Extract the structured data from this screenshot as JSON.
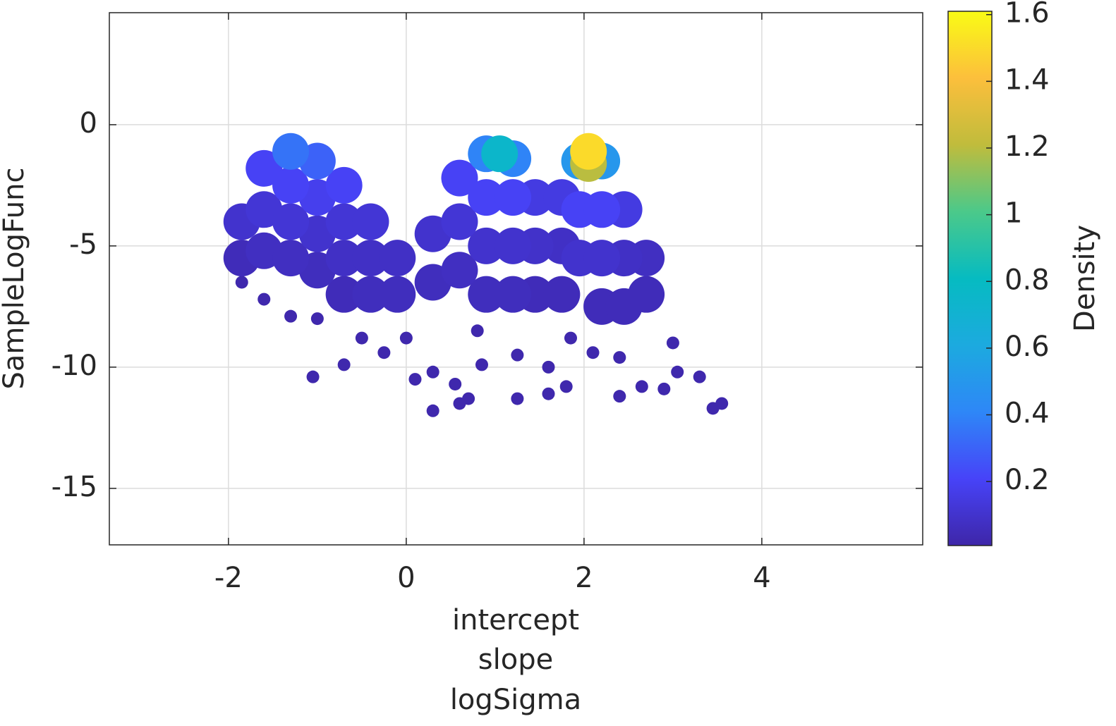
{
  "chart_data": {
    "type": "scatter",
    "ylabel": "SampleLogFunc",
    "xlabel": [
      "intercept",
      "slope",
      "logSigma"
    ],
    "colorbar_label": "Density",
    "x": [
      -1.85,
      -1.85,
      -1.6,
      -1.6,
      -1.6,
      -1.3,
      -1.3,
      -1.3,
      -1.3,
      -1,
      -1,
      -1,
      -1,
      -0.7,
      -0.7,
      -0.7,
      -0.7,
      -0.4,
      -0.4,
      -0.4,
      -0.1,
      -0.1,
      0.3,
      0.3,
      0.6,
      0.6,
      0.6,
      0.9,
      0.9,
      0.9,
      0.9,
      1.05,
      1.2,
      1.2,
      1.2,
      1.2,
      1.45,
      1.45,
      1.45,
      1.75,
      1.75,
      1.75,
      1.95,
      1.95,
      1.95,
      2.05,
      2.05,
      2.2,
      2.2,
      2.2,
      2.2,
      2.45,
      2.45,
      2.45,
      2.7,
      2.7,
      -1.85,
      -1.6,
      -1.3,
      -1,
      -0.5,
      -0.25,
      0,
      0.1,
      0.3,
      0.55,
      0.7,
      0.3,
      0.6,
      -1.05,
      -0.7,
      0.85,
      1.25,
      1.6,
      1.8,
      2.1,
      2.4,
      2.4,
      2.65,
      3,
      3.05,
      3.3,
      3.45,
      3.55,
      2.9,
      1.25,
      1.6,
      0.8,
      1.85
    ],
    "y": [
      -4,
      -5.5,
      -1.8,
      -3.5,
      -5.2,
      -1.1,
      -2.5,
      -4,
      -5.5,
      -1.5,
      -3,
      -4.5,
      -6,
      -2.5,
      -4,
      -5.5,
      -7,
      -4,
      -5.5,
      -7,
      -5.5,
      -7,
      -4.5,
      -6.5,
      -2.2,
      -4,
      -6,
      -1.2,
      -3,
      -5,
      -7,
      -1.2,
      -1.4,
      -3,
      -5,
      -7,
      -3,
      -5,
      -7,
      -3,
      -5,
      -7,
      -1.5,
      -3.5,
      -5.5,
      -1.1,
      -1.6,
      -1.5,
      -3.5,
      -5.5,
      -7.5,
      -3.5,
      -5.5,
      -7.5,
      -5.5,
      -7,
      -6.5,
      -7.2,
      -7.9,
      -8,
      -8.8,
      -9.4,
      -8.8,
      -10.5,
      -10.2,
      -10.7,
      -11.3,
      -11.8,
      -11.5,
      -10.4,
      -9.9,
      -9.9,
      -9.5,
      -10,
      -10.8,
      -9.4,
      -9.6,
      -11.2,
      -10.8,
      -9,
      -10.2,
      -10.4,
      -11.7,
      -11.5,
      -10.9,
      -11.3,
      -11.1,
      -8.5,
      -8.8
    ],
    "density": [
      0.1,
      0.05,
      0.2,
      0.12,
      0.07,
      0.35,
      0.2,
      0.12,
      0.07,
      0.3,
      0.18,
      0.1,
      0.06,
      0.2,
      0.12,
      0.08,
      0.05,
      0.12,
      0.08,
      0.06,
      0.08,
      0.06,
      0.1,
      0.06,
      0.2,
      0.12,
      0.07,
      0.4,
      0.2,
      0.1,
      0.06,
      0.75,
      0.4,
      0.2,
      0.1,
      0.06,
      0.15,
      0.09,
      0.05,
      0.15,
      0.08,
      0.05,
      0.5,
      0.2,
      0.1,
      1.5,
      1.2,
      0.5,
      0.2,
      0.1,
      0.05,
      0.15,
      0.08,
      0.05,
      0.07,
      0.05,
      0.02,
      0.02,
      0.02,
      0.02,
      0.02,
      0.02,
      0.02,
      0.02,
      0.02,
      0.02,
      0.02,
      0.02,
      0.02,
      0.02,
      0.02,
      0.02,
      0.02,
      0.02,
      0.02,
      0.02,
      0.02,
      0.02,
      0.02,
      0.02,
      0.02,
      0.02,
      0.02,
      0.02,
      0.02,
      0.02,
      0.02,
      0.02,
      0.02
    ],
    "xlim": [
      -3.34,
      5.81
    ],
    "xticks": [
      -2,
      0,
      2,
      4
    ],
    "ylim": [
      -17.33,
      4.62
    ],
    "yticks": [
      -15,
      -10,
      -5,
      0
    ],
    "clim": [
      0.008,
      1.61
    ],
    "cticks": [
      0.2,
      0.4,
      0.6,
      0.8,
      1,
      1.2,
      1.4,
      1.6
    ],
    "colormap": [
      "#3e26a8",
      "#4743f8",
      "#2e87f7",
      "#1caadf",
      "#06bbc1",
      "#4bc98a",
      "#c0bc3c",
      "#fcbf3c",
      "#f9fb15"
    ],
    "grid": true
  }
}
